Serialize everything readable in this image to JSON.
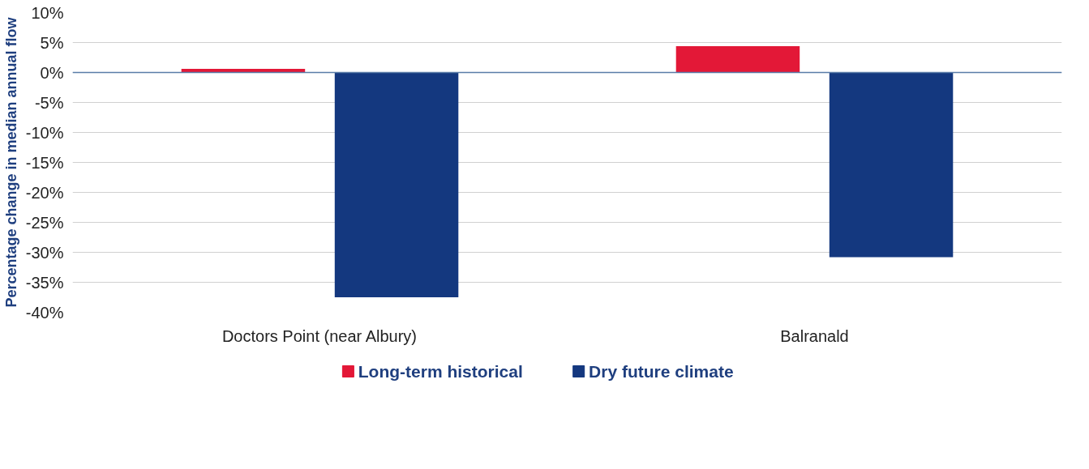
{
  "chart_data": {
    "type": "bar",
    "ylabel": "Percentage change in median annual flow",
    "categories": [
      "Doctors Point (near Albury)",
      "Balranald"
    ],
    "series": [
      {
        "name": "Long-term historical",
        "color": "#e31837",
        "values": [
          0.6,
          4.4
        ]
      },
      {
        "name": "Dry future climate",
        "color": "#14387f",
        "values": [
          -37.5,
          -30.8
        ]
      }
    ],
    "ylim": [
      -40,
      10
    ],
    "yticks": [
      {
        "value": 10,
        "label": "10%"
      },
      {
        "value": 5,
        "label": "5%"
      },
      {
        "value": 0,
        "label": "0%"
      },
      {
        "value": -5,
        "label": "-5%"
      },
      {
        "value": -10,
        "label": "-10%"
      },
      {
        "value": -15,
        "label": "-15%"
      },
      {
        "value": -20,
        "label": "-20%"
      },
      {
        "value": -25,
        "label": "-25%"
      },
      {
        "value": -30,
        "label": "-30%"
      },
      {
        "value": -35,
        "label": "-35%"
      },
      {
        "value": -40,
        "label": "-40%"
      }
    ],
    "ref_lines": [
      {
        "axis": "y",
        "value": 0,
        "color": "#5a7ca8"
      }
    ],
    "grid": "y",
    "legend": "bottom"
  }
}
